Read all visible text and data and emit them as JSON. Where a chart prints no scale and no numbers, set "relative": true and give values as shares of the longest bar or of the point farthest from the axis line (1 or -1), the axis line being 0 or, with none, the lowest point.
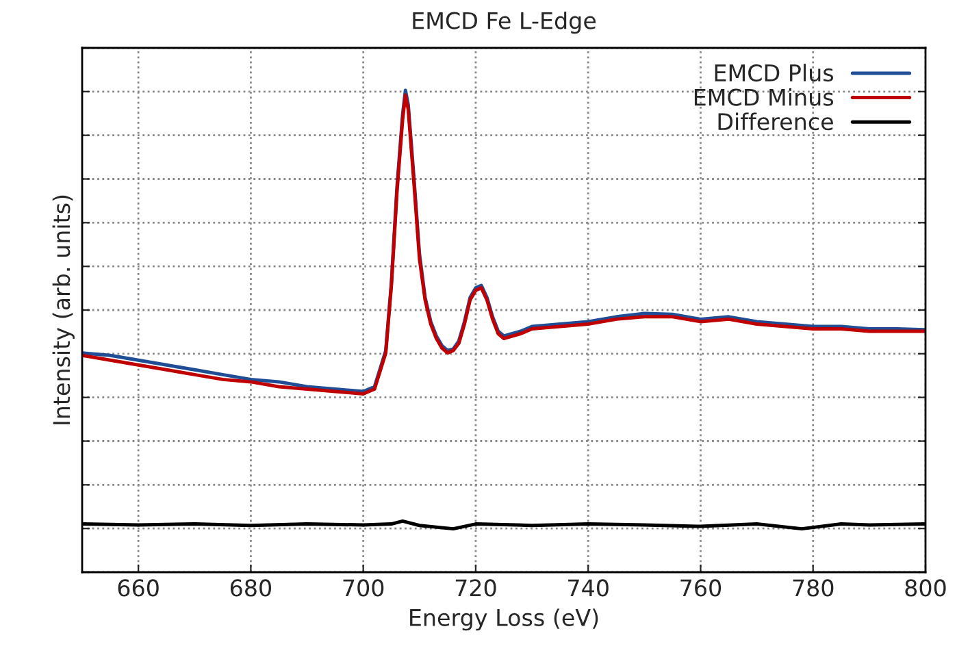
{
  "chart_data": {
    "type": "line",
    "title": "EMCD Fe L-Edge",
    "xlabel": "Energy Loss (eV)",
    "ylabel": "Intensity (arb. units)",
    "relative": true,
    "xlim": [
      650,
      800
    ],
    "xticks": [
      660,
      680,
      700,
      720,
      740,
      760,
      780,
      800
    ],
    "grid": true,
    "legend": "top right",
    "tick_labels": "x",
    "series": [
      {
        "name": "EMCD Plus",
        "color": "#1f4e96",
        "x": [
          650,
          655,
          660,
          665,
          670,
          675,
          680,
          685,
          690,
          695,
          700,
          702,
          704,
          705,
          706,
          707,
          707.5,
          708,
          709,
          710,
          711,
          712,
          713,
          714,
          715,
          716,
          717,
          718,
          719,
          720,
          721,
          722,
          723,
          724,
          725,
          728,
          730,
          735,
          740,
          745,
          750,
          755,
          760,
          765,
          770,
          775,
          780,
          785,
          790,
          795,
          800
        ],
        "values": [
          0.455,
          0.45,
          0.44,
          0.43,
          0.42,
          0.41,
          0.4,
          0.395,
          0.385,
          0.38,
          0.375,
          0.385,
          0.46,
          0.6,
          0.8,
          0.95,
          1.0,
          0.97,
          0.82,
          0.66,
          0.57,
          0.52,
          0.49,
          0.47,
          0.46,
          0.463,
          0.48,
          0.52,
          0.57,
          0.59,
          0.595,
          0.57,
          0.53,
          0.5,
          0.49,
          0.5,
          0.51,
          0.515,
          0.52,
          0.53,
          0.537,
          0.535,
          0.525,
          0.53,
          0.52,
          0.515,
          0.51,
          0.51,
          0.505,
          0.505,
          0.503
        ]
      },
      {
        "name": "EMCD Minus",
        "color": "#c00000",
        "x": [
          650,
          655,
          660,
          665,
          670,
          675,
          680,
          685,
          690,
          695,
          700,
          702,
          704,
          705,
          706,
          707,
          707.5,
          708,
          709,
          710,
          711,
          712,
          713,
          714,
          715,
          716,
          717,
          718,
          719,
          720,
          721,
          722,
          723,
          724,
          725,
          728,
          730,
          735,
          740,
          745,
          750,
          755,
          760,
          765,
          770,
          775,
          780,
          785,
          790,
          795,
          800
        ],
        "values": [
          0.45,
          0.44,
          0.43,
          0.42,
          0.41,
          0.4,
          0.395,
          0.385,
          0.38,
          0.375,
          0.37,
          0.38,
          0.455,
          0.595,
          0.79,
          0.94,
          0.99,
          0.96,
          0.81,
          0.65,
          0.565,
          0.515,
          0.485,
          0.465,
          0.455,
          0.46,
          0.475,
          0.515,
          0.565,
          0.585,
          0.59,
          0.565,
          0.525,
          0.495,
          0.485,
          0.495,
          0.505,
          0.51,
          0.515,
          0.525,
          0.53,
          0.53,
          0.52,
          0.525,
          0.515,
          0.51,
          0.505,
          0.505,
          0.5,
          0.5,
          0.5
        ]
      },
      {
        "name": "Difference",
        "color": "#000000",
        "x": [
          650,
          660,
          670,
          680,
          690,
          700,
          705,
          707,
          710,
          716,
          720,
          730,
          740,
          750,
          760,
          770,
          778,
          785,
          790,
          800
        ],
        "values": [
          0.1,
          0.098,
          0.1,
          0.097,
          0.1,
          0.098,
          0.1,
          0.106,
          0.097,
          0.09,
          0.1,
          0.097,
          0.1,
          0.098,
          0.095,
          0.1,
          0.09,
          0.1,
          0.098,
          0.1
        ]
      }
    ]
  }
}
